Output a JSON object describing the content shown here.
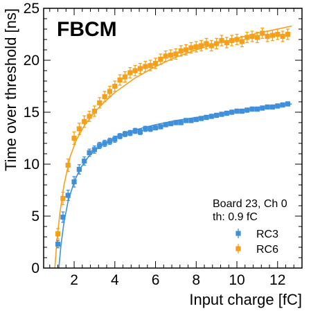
{
  "chart_data": {
    "type": "scatter",
    "badge": "FBCM",
    "xlabel": "Input charge [fC]",
    "ylabel": "Time over threshold [ns]",
    "xlim": [
      0.5,
      13.2
    ],
    "ylim": [
      0,
      25
    ],
    "xticks": [
      2,
      4,
      6,
      8,
      10,
      12
    ],
    "yticks": [
      0,
      5,
      10,
      15,
      20,
      25
    ],
    "grid": false,
    "legend_header": [
      "Board 23, Ch 0",
      "th: 0.9 fC"
    ],
    "legend_position": "bottom-right",
    "series": [
      {
        "name": "RC3",
        "color": "#3f90da",
        "marker": "square",
        "x": [
          1.2,
          1.45,
          1.7,
          2.0,
          2.25,
          2.5,
          2.75,
          3.0,
          3.25,
          3.5,
          3.75,
          4.0,
          4.25,
          4.5,
          4.75,
          5.0,
          5.25,
          5.5,
          5.75,
          6.0,
          6.25,
          6.5,
          6.75,
          7.0,
          7.25,
          7.5,
          7.75,
          8.0,
          8.25,
          8.5,
          8.75,
          9.0,
          9.25,
          9.5,
          9.75,
          10.0,
          10.25,
          10.5,
          10.75,
          11.0,
          11.25,
          11.5,
          11.75,
          12.0,
          12.25,
          12.5
        ],
        "y": [
          2.3,
          4.9,
          7.0,
          8.3,
          9.5,
          10.3,
          11.1,
          11.4,
          11.8,
          12.0,
          12.2,
          12.4,
          12.7,
          12.9,
          13.0,
          13.2,
          13.1,
          13.4,
          13.4,
          13.5,
          13.6,
          13.8,
          13.9,
          14.0,
          14.0,
          14.2,
          14.2,
          14.3,
          14.4,
          14.5,
          14.6,
          14.7,
          14.8,
          14.9,
          15.0,
          15.1,
          15.1,
          15.2,
          15.3,
          15.3,
          15.4,
          15.5,
          15.5,
          15.6,
          15.7,
          15.8
        ],
        "yerr": [
          0.35,
          0.5,
          0.5,
          0.5,
          0.45,
          0.4,
          0.35,
          0.35,
          0.3,
          0.3,
          0.3,
          0.3,
          0.25,
          0.25,
          0.25,
          0.25,
          0.25,
          0.25,
          0.25,
          0.2,
          0.2,
          0.2,
          0.2,
          0.2,
          0.2,
          0.2,
          0.2,
          0.2,
          0.2,
          0.2,
          0.2,
          0.2,
          0.2,
          0.2,
          0.2,
          0.2,
          0.2,
          0.2,
          0.2,
          0.2,
          0.2,
          0.2,
          0.2,
          0.2,
          0.2,
          0.2
        ],
        "fit_x": [
          1.25,
          1.35,
          1.5,
          1.7,
          2.0,
          2.3,
          2.7,
          3.0,
          3.5,
          4.0,
          5.0,
          6.0,
          7.0,
          8.0,
          9.0,
          10.0,
          11.0,
          12.0,
          12.7
        ],
        "fit_y": [
          0.0,
          2.2,
          4.4,
          6.4,
          8.3,
          9.6,
          10.7,
          11.3,
          12.0,
          12.6,
          13.3,
          13.8,
          14.2,
          14.5,
          14.8,
          15.1,
          15.4,
          15.6,
          15.8
        ]
      },
      {
        "name": "RC6",
        "color": "#f5a01a",
        "marker": "square",
        "x": [
          1.2,
          1.45,
          1.7,
          2.0,
          2.25,
          2.5,
          2.75,
          3.0,
          3.25,
          3.5,
          3.75,
          4.0,
          4.25,
          4.5,
          4.75,
          5.0,
          5.25,
          5.5,
          5.75,
          6.0,
          6.25,
          6.5,
          6.75,
          7.0,
          7.25,
          7.5,
          7.75,
          8.0,
          8.25,
          8.5,
          8.75,
          9.0,
          9.25,
          9.5,
          9.75,
          10.0,
          10.25,
          10.5,
          10.75,
          11.0,
          11.25,
          11.5,
          11.75,
          12.0,
          12.25,
          12.5
        ],
        "y": [
          3.3,
          6.7,
          9.9,
          12.5,
          13.4,
          14.1,
          14.6,
          15.1,
          15.9,
          16.5,
          17.0,
          17.5,
          18.1,
          18.4,
          18.8,
          19.0,
          19.2,
          19.4,
          19.5,
          19.7,
          20.1,
          20.4,
          20.5,
          20.6,
          20.9,
          21.0,
          21.2,
          21.3,
          21.4,
          21.6,
          21.4,
          21.6,
          21.9,
          21.7,
          21.9,
          22.0,
          21.8,
          22.2,
          22.3,
          22.2,
          22.6,
          22.3,
          22.4,
          22.5,
          22.3,
          22.5
        ],
        "yerr": [
          0.5,
          0.6,
          0.6,
          0.6,
          0.55,
          0.55,
          0.5,
          0.5,
          0.5,
          0.5,
          0.5,
          0.5,
          0.5,
          0.5,
          0.5,
          0.5,
          0.5,
          0.5,
          0.5,
          0.5,
          0.5,
          0.5,
          0.5,
          0.5,
          0.5,
          0.5,
          0.5,
          0.5,
          0.5,
          0.5,
          0.5,
          0.5,
          0.5,
          0.5,
          0.5,
          0.5,
          0.5,
          0.5,
          0.5,
          0.5,
          0.5,
          0.5,
          0.5,
          0.5,
          0.5,
          0.5
        ],
        "fit_x": [
          1.05,
          1.15,
          1.3,
          1.5,
          1.8,
          2.1,
          2.5,
          3.0,
          3.5,
          4.0,
          5.0,
          6.0,
          7.0,
          8.0,
          9.0,
          10.0,
          11.0,
          12.0,
          12.7
        ],
        "fit_y": [
          0.0,
          2.6,
          5.3,
          8.0,
          10.7,
          12.3,
          13.7,
          15.0,
          16.0,
          16.9,
          18.3,
          19.4,
          20.3,
          21.0,
          21.6,
          22.1,
          22.6,
          23.0,
          23.3
        ]
      }
    ]
  }
}
